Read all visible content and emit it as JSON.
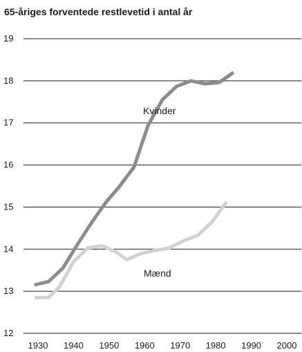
{
  "chart_data": {
    "type": "line",
    "title": "65-åriges forventede restlevetid i antal år",
    "xlabel": "",
    "ylabel": "",
    "xlim": [
      1927,
      2002
    ],
    "ylim": [
      12,
      19
    ],
    "x_ticks": [
      1930,
      1940,
      1950,
      1960,
      1970,
      1980,
      1990,
      2000
    ],
    "y_ticks": [
      12,
      13,
      14,
      15,
      16,
      17,
      18,
      19
    ],
    "grid": "horizontal",
    "series": [
      {
        "name": "Kvinder",
        "color": "#8c8c8c",
        "points": [
          [
            1929,
            13.15
          ],
          [
            1933,
            13.23
          ],
          [
            1937,
            13.55
          ],
          [
            1941,
            14.1
          ],
          [
            1945,
            14.62
          ],
          [
            1949,
            15.1
          ],
          [
            1953,
            15.5
          ],
          [
            1957,
            15.95
          ],
          [
            1961,
            16.95
          ],
          [
            1965,
            17.55
          ],
          [
            1969,
            17.87
          ],
          [
            1973,
            18.0
          ],
          [
            1977,
            17.93
          ],
          [
            1981,
            17.96
          ],
          [
            1985,
            18.2
          ]
        ]
      },
      {
        "name": "Mænd",
        "color": "#d2d2d2",
        "points": [
          [
            1929,
            12.85
          ],
          [
            1933,
            12.85
          ],
          [
            1936,
            13.1
          ],
          [
            1940,
            13.7
          ],
          [
            1944,
            14.03
          ],
          [
            1948,
            14.08
          ],
          [
            1952,
            13.93
          ],
          [
            1955,
            13.75
          ],
          [
            1959,
            13.9
          ],
          [
            1963,
            13.97
          ],
          [
            1967,
            14.03
          ],
          [
            1971,
            14.2
          ],
          [
            1975,
            14.33
          ],
          [
            1979,
            14.65
          ],
          [
            1983,
            15.12
          ]
        ]
      }
    ]
  }
}
